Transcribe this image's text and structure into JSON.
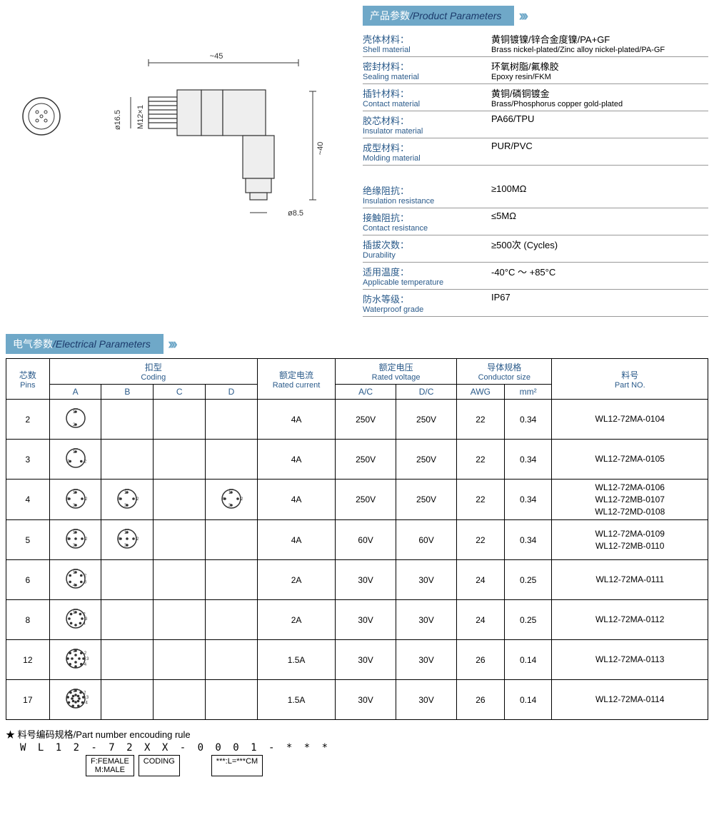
{
  "section_product_params": {
    "title_cn": "产品参数",
    "title_en": "Product Parameters"
  },
  "section_electrical_params": {
    "title_cn": "电气参数",
    "title_en": "Electrical Parameters"
  },
  "diagram": {
    "width_label": "~45",
    "height_label": "~40",
    "thread_label": "M12×1",
    "outer_dia_label": "ø16.5",
    "cable_dia_label": "ø8.5"
  },
  "materials": [
    {
      "label_cn": "壳体材料：",
      "label_en": "Shell material",
      "value_cn": "黄铜镀镍/锌合金度镍/PA+GF",
      "value_en": "Brass nickel-plated/Zinc alloy nickel-plated/PA-GF"
    },
    {
      "label_cn": "密封材料：",
      "label_en": "Sealing material",
      "value_cn": "环氧树脂/氟橡胶",
      "value_en": "Epoxy resin/FKM"
    },
    {
      "label_cn": "插针材料：",
      "label_en": "Contact material",
      "value_cn": "黄铜/磷铜镀金",
      "value_en": "Brass/Phosphorus copper gold-plated"
    },
    {
      "label_cn": "胶芯材料：",
      "label_en": "Insulator material",
      "value_cn": "PA66/TPU",
      "value_en": ""
    },
    {
      "label_cn": "成型材料：",
      "label_en": "Molding material",
      "value_cn": "PUR/PVC",
      "value_en": ""
    }
  ],
  "electrical_props": [
    {
      "label_cn": "绝缘阻抗：",
      "label_en": "Insulation resistance",
      "value_cn": "≥100MΩ",
      "value_en": ""
    },
    {
      "label_cn": "接触阻抗：",
      "label_en": "Contact resistance",
      "value_cn": "≤5MΩ",
      "value_en": ""
    },
    {
      "label_cn": "插拔次数：",
      "label_en": "Durability",
      "value_cn": "≥500次 (Cycles)",
      "value_en": ""
    },
    {
      "label_cn": "适用温度：",
      "label_en": "Applicable temperature",
      "value_cn": "-40°C ～ +85°C",
      "value_en": ""
    },
    {
      "label_cn": "防水等级：",
      "label_en": "Waterproof grade",
      "value_cn": "IP67",
      "value_en": ""
    }
  ],
  "elec_table": {
    "headers": {
      "pins_cn": "芯数",
      "pins_en": "Pins",
      "coding_cn": "扣型",
      "coding_en": "Coding",
      "current_cn": "额定电流",
      "current_en": "Rated current",
      "voltage_cn": "额定电压",
      "voltage_en": "Rated voltage",
      "conductor_cn": "导体规格",
      "conductor_en": "Conductor size",
      "partno_cn": "料号",
      "partno_en": "Part NO.",
      "A": "A",
      "B": "B",
      "C": "C",
      "D": "D",
      "AC": "A/C",
      "DC": "D/C",
      "AWG": "AWG",
      "mm2": "mm²"
    },
    "rows": [
      {
        "pins": "2",
        "coding": {
          "A": 2,
          "B": null,
          "C": null,
          "D": null
        },
        "current": "4A",
        "ac": "250V",
        "dc": "250V",
        "awg": "22",
        "mm2": "0.34",
        "partno": [
          "WL12-72MA-0104"
        ]
      },
      {
        "pins": "3",
        "coding": {
          "A": 3,
          "B": null,
          "C": null,
          "D": null
        },
        "current": "4A",
        "ac": "250V",
        "dc": "250V",
        "awg": "22",
        "mm2": "0.34",
        "partno": [
          "WL12-72MA-0105"
        ]
      },
      {
        "pins": "4",
        "coding": {
          "A": 4,
          "B": 4,
          "C": null,
          "D": 4
        },
        "current": "4A",
        "ac": "250V",
        "dc": "250V",
        "awg": "22",
        "mm2": "0.34",
        "partno": [
          "WL12-72MA-0106",
          "WL12-72MB-0107",
          "WL12-72MD-0108"
        ]
      },
      {
        "pins": "5",
        "coding": {
          "A": 5,
          "B": 5,
          "C": null,
          "D": null
        },
        "current": "4A",
        "ac": "60V",
        "dc": "60V",
        "awg": "22",
        "mm2": "0.34",
        "partno": [
          "WL12-72MA-0109",
          "WL12-72MB-0110"
        ]
      },
      {
        "pins": "6",
        "coding": {
          "A": 6,
          "B": null,
          "C": null,
          "D": null
        },
        "current": "2A",
        "ac": "30V",
        "dc": "30V",
        "awg": "24",
        "mm2": "0.25",
        "partno": [
          "WL12-72MA-0111"
        ]
      },
      {
        "pins": "8",
        "coding": {
          "A": 8,
          "B": null,
          "C": null,
          "D": null
        },
        "current": "2A",
        "ac": "30V",
        "dc": "30V",
        "awg": "24",
        "mm2": "0.25",
        "partno": [
          "WL12-72MA-0112"
        ]
      },
      {
        "pins": "12",
        "coding": {
          "A": 12,
          "B": null,
          "C": null,
          "D": null
        },
        "current": "1.5A",
        "ac": "30V",
        "dc": "30V",
        "awg": "26",
        "mm2": "0.14",
        "partno": [
          "WL12-72MA-0113"
        ]
      },
      {
        "pins": "17",
        "coding": {
          "A": 17,
          "B": null,
          "C": null,
          "D": null
        },
        "current": "1.5A",
        "ac": "30V",
        "dc": "30V",
        "awg": "26",
        "mm2": "0.14",
        "partno": [
          "WL12-72MA-0114"
        ]
      }
    ]
  },
  "encoding_rule": {
    "title": "★ 料号编码规格/Part number encouding rule",
    "pattern": "W L 1 2 - 7 2 X X - 0 0 0 1 - * * *",
    "labels": {
      "gender": "F:FEMALE\nM:MALE",
      "coding": "CODING",
      "length": "***:L=***CM"
    }
  },
  "colors": {
    "header_bg": "#6fa8c8",
    "label_text": "#2a5a8a",
    "chevron": "#6fa8c8",
    "border": "#000000"
  }
}
